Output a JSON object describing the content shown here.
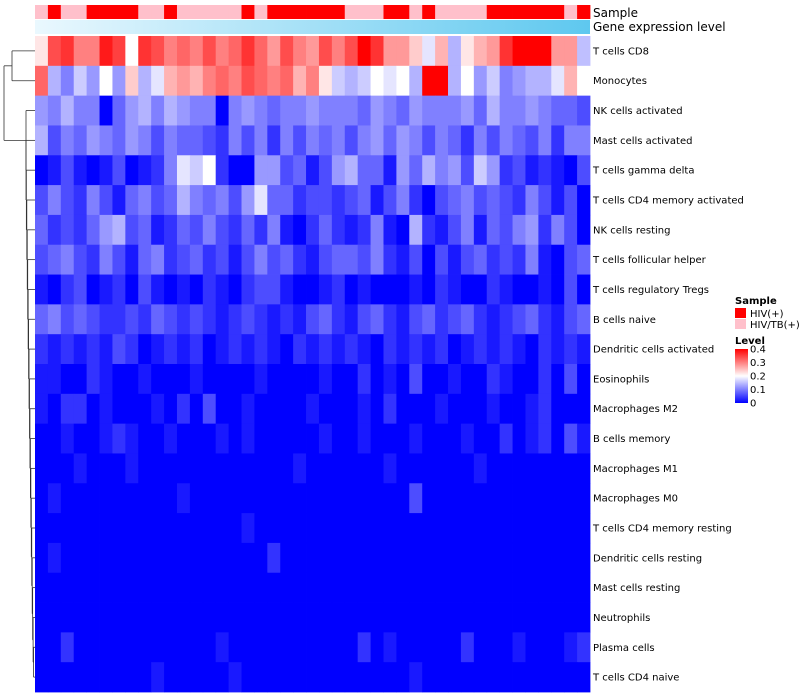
{
  "chart_data": {
    "type": "heatmap",
    "title": "",
    "annotations": {
      "sample_label": "Sample",
      "gene_label": "Gene expression level"
    },
    "rows": [
      "T cells CD8",
      "Monocytes",
      "NK cells activated",
      "Mast cells activated",
      "T cells gamma delta",
      "T cells CD4 memory activated",
      "NK cells resting",
      "T cells follicular helper",
      "T cells regulatory  Tregs",
      "B cells naive",
      "Dendritic cells activated",
      "Eosinophils",
      "Macrophages M2",
      "B cells memory",
      "Macrophages M1",
      "Macrophages M0",
      "T cells CD4 memory resting",
      "Dendritic cells resting",
      "Mast cells resting",
      "Neutrophils",
      "Plasma cells",
      "T cells CD4 naive"
    ],
    "samples": [
      "HIV/TB(+)",
      "HIV(+)",
      "HIV/TB(+)",
      "HIV/TB(+)",
      "HIV(+)",
      "HIV(+)",
      "HIV(+)",
      "HIV(+)",
      "HIV/TB(+)",
      "HIV/TB(+)",
      "HIV(+)",
      "HIV/TB(+)",
      "HIV/TB(+)",
      "HIV/TB(+)",
      "HIV/TB(+)",
      "HIV/TB(+)",
      "HIV(+)",
      "HIV/TB(+)",
      "HIV(+)",
      "HIV(+)",
      "HIV(+)",
      "HIV(+)",
      "HIV(+)",
      "HIV(+)",
      "HIV/TB(+)",
      "HIV/TB(+)",
      "HIV/TB(+)",
      "HIV(+)",
      "HIV(+)",
      "HIV/TB(+)",
      "HIV(+)",
      "HIV/TB(+)",
      "HIV/TB(+)",
      "HIV/TB(+)",
      "HIV/TB(+)",
      "HIV(+)",
      "HIV(+)",
      "HIV(+)",
      "HIV(+)",
      "HIV(+)",
      "HIV(+)",
      "HIV/TB(+)",
      "HIV(+)"
    ],
    "gene_expression_level": "low to high",
    "values": [
      [
        0.22,
        0.34,
        0.36,
        0.3,
        0.3,
        0.38,
        0.35,
        0.2,
        0.36,
        0.34,
        0.3,
        0.32,
        0.3,
        0.34,
        0.3,
        0.32,
        0.36,
        0.32,
        0.28,
        0.34,
        0.3,
        0.28,
        0.34,
        0.3,
        0.34,
        0.4,
        0.36,
        0.28,
        0.28,
        0.24,
        0.18,
        0.26,
        0.14,
        0.22,
        0.26,
        0.28,
        0.36,
        0.4,
        0.4,
        0.4,
        0.28,
        0.28,
        0.15
      ],
      [
        0.32,
        0.14,
        0.1,
        0.16,
        0.12,
        0.2,
        0.12,
        0.24,
        0.14,
        0.18,
        0.26,
        0.28,
        0.26,
        0.3,
        0.32,
        0.3,
        0.34,
        0.32,
        0.3,
        0.32,
        0.26,
        0.3,
        0.22,
        0.16,
        0.14,
        0.16,
        0.2,
        0.18,
        0.2,
        0.14,
        0.4,
        0.4,
        0.14,
        0.2,
        0.12,
        0.16,
        0.1,
        0.12,
        0.14,
        0.14,
        0.18,
        0.26,
        0.2
      ],
      [
        0.12,
        0.1,
        0.14,
        0.1,
        0.1,
        0.0,
        0.08,
        0.12,
        0.14,
        0.1,
        0.14,
        0.12,
        0.1,
        0.1,
        0.0,
        0.1,
        0.12,
        0.1,
        0.08,
        0.1,
        0.1,
        0.12,
        0.1,
        0.1,
        0.1,
        0.08,
        0.12,
        0.1,
        0.08,
        0.12,
        0.1,
        0.1,
        0.1,
        0.12,
        0.08,
        0.14,
        0.1,
        0.1,
        0.12,
        0.1,
        0.08,
        0.08,
        0.06
      ],
      [
        0.14,
        0.06,
        0.1,
        0.08,
        0.12,
        0.1,
        0.08,
        0.12,
        0.1,
        0.06,
        0.1,
        0.08,
        0.08,
        0.06,
        0.04,
        0.1,
        0.06,
        0.1,
        0.04,
        0.1,
        0.06,
        0.1,
        0.08,
        0.1,
        0.06,
        0.1,
        0.12,
        0.08,
        0.12,
        0.1,
        0.06,
        0.1,
        0.08,
        0.04,
        0.1,
        0.06,
        0.1,
        0.08,
        0.06,
        0.1,
        0.04,
        0.1,
        0.1
      ],
      [
        0.0,
        0.02,
        0.06,
        0.02,
        0.0,
        0.02,
        0.06,
        0.0,
        0.02,
        0.04,
        0.1,
        0.18,
        0.16,
        0.2,
        0.04,
        0.0,
        0.0,
        0.12,
        0.12,
        0.06,
        0.08,
        0.02,
        0.06,
        0.12,
        0.14,
        0.08,
        0.08,
        0.02,
        0.12,
        0.08,
        0.14,
        0.1,
        0.12,
        0.06,
        0.16,
        0.12,
        0.04,
        0.06,
        0.02,
        0.04,
        0.02,
        0.0,
        0.06
      ],
      [
        0.06,
        0.1,
        0.06,
        0.04,
        0.1,
        0.06,
        0.02,
        0.08,
        0.1,
        0.06,
        0.08,
        0.14,
        0.1,
        0.08,
        0.1,
        0.06,
        0.12,
        0.18,
        0.08,
        0.08,
        0.04,
        0.06,
        0.06,
        0.04,
        0.06,
        0.08,
        0.02,
        0.06,
        0.1,
        0.04,
        0.0,
        0.06,
        0.08,
        0.1,
        0.06,
        0.08,
        0.06,
        0.04,
        0.1,
        0.06,
        0.02,
        0.06,
        0.0
      ],
      [
        0.08,
        0.04,
        0.06,
        0.04,
        0.08,
        0.12,
        0.14,
        0.06,
        0.08,
        0.02,
        0.04,
        0.08,
        0.06,
        0.1,
        0.06,
        0.04,
        0.08,
        0.04,
        0.1,
        0.02,
        0.0,
        0.04,
        0.08,
        0.04,
        0.02,
        0.04,
        0.1,
        0.02,
        0.0,
        0.14,
        0.04,
        0.02,
        0.06,
        0.1,
        0.02,
        0.08,
        0.06,
        0.1,
        0.12,
        0.04,
        0.1,
        0.06,
        0.0
      ],
      [
        0.06,
        0.08,
        0.1,
        0.06,
        0.04,
        0.1,
        0.06,
        0.02,
        0.08,
        0.1,
        0.04,
        0.06,
        0.08,
        0.04,
        0.06,
        0.02,
        0.06,
        0.1,
        0.06,
        0.08,
        0.04,
        0.02,
        0.06,
        0.08,
        0.08,
        0.06,
        0.1,
        0.04,
        0.02,
        0.06,
        0.0,
        0.06,
        0.02,
        0.06,
        0.08,
        0.04,
        0.06,
        0.04,
        0.1,
        0.02,
        0.0,
        0.06,
        0.08
      ],
      [
        0.02,
        0.0,
        0.04,
        0.06,
        0.0,
        0.02,
        0.04,
        0.0,
        0.06,
        0.02,
        0.0,
        0.02,
        0.0,
        0.04,
        0.02,
        0.0,
        0.04,
        0.06,
        0.06,
        0.02,
        0.0,
        0.0,
        0.02,
        0.04,
        0.0,
        0.02,
        0.0,
        0.0,
        0.0,
        0.02,
        0.0,
        0.04,
        0.02,
        0.0,
        0.0,
        0.04,
        0.02,
        0.0,
        0.0,
        0.02,
        0.0,
        0.06,
        0.0
      ],
      [
        0.08,
        0.1,
        0.06,
        0.08,
        0.06,
        0.04,
        0.04,
        0.06,
        0.04,
        0.08,
        0.06,
        0.04,
        0.06,
        0.04,
        0.02,
        0.04,
        0.06,
        0.04,
        0.02,
        0.04,
        0.02,
        0.06,
        0.08,
        0.04,
        0.02,
        0.06,
        0.08,
        0.04,
        0.02,
        0.06,
        0.08,
        0.04,
        0.06,
        0.08,
        0.04,
        0.02,
        0.04,
        0.06,
        0.08,
        0.04,
        0.02,
        0.06,
        0.08
      ],
      [
        0.04,
        0.02,
        0.04,
        0.02,
        0.04,
        0.02,
        0.06,
        0.04,
        0.0,
        0.02,
        0.04,
        0.02,
        0.04,
        0.0,
        0.02,
        0.04,
        0.02,
        0.04,
        0.02,
        0.0,
        0.04,
        0.02,
        0.04,
        0.02,
        0.04,
        0.02,
        0.0,
        0.04,
        0.02,
        0.04,
        0.02,
        0.04,
        0.0,
        0.02,
        0.04,
        0.02,
        0.04,
        0.02,
        0.0,
        0.04,
        0.02,
        0.04,
        0.02
      ],
      [
        0.02,
        0.02,
        0.0,
        0.0,
        0.04,
        0.02,
        0.0,
        0.0,
        0.02,
        0.0,
        0.0,
        0.0,
        0.02,
        0.0,
        0.0,
        0.0,
        0.0,
        0.02,
        0.0,
        0.0,
        0.0,
        0.0,
        0.02,
        0.0,
        0.0,
        0.04,
        0.0,
        0.02,
        0.0,
        0.06,
        0.0,
        0.0,
        0.02,
        0.0,
        0.0,
        0.04,
        0.02,
        0.0,
        0.0,
        0.04,
        0.0,
        0.06,
        0.0
      ],
      [
        0.02,
        0.0,
        0.04,
        0.04,
        0.0,
        0.02,
        0.0,
        0.0,
        0.0,
        0.02,
        0.0,
        0.04,
        0.0,
        0.06,
        0.0,
        0.0,
        0.02,
        0.0,
        0.0,
        0.0,
        0.0,
        0.02,
        0.0,
        0.0,
        0.0,
        0.02,
        0.0,
        0.04,
        0.0,
        0.0,
        0.0,
        0.02,
        0.0,
        0.0,
        0.0,
        0.02,
        0.0,
        0.0,
        0.02,
        0.04,
        0.0,
        0.0,
        0.0
      ],
      [
        0.0,
        0.0,
        0.02,
        0.0,
        0.0,
        0.02,
        0.04,
        0.02,
        0.0,
        0.0,
        0.02,
        0.0,
        0.0,
        0.0,
        0.02,
        0.0,
        0.02,
        0.0,
        0.0,
        0.0,
        0.0,
        0.0,
        0.02,
        0.0,
        0.0,
        0.02,
        0.0,
        0.0,
        0.0,
        0.02,
        0.0,
        0.0,
        0.0,
        0.02,
        0.0,
        0.0,
        0.04,
        0.0,
        0.02,
        0.04,
        0.0,
        0.06,
        0.02
      ],
      [
        0.0,
        0.0,
        0.0,
        0.02,
        0.0,
        0.0,
        0.0,
        0.02,
        0.0,
        0.0,
        0.0,
        0.0,
        0.0,
        0.0,
        0.0,
        0.0,
        0.0,
        0.0,
        0.0,
        0.0,
        0.02,
        0.0,
        0.0,
        0.0,
        0.0,
        0.0,
        0.0,
        0.02,
        0.0,
        0.0,
        0.0,
        0.0,
        0.0,
        0.0,
        0.02,
        0.0,
        0.0,
        0.0,
        0.0,
        0.0,
        0.0,
        0.0,
        0.0
      ],
      [
        0.0,
        0.02,
        0.0,
        0.0,
        0.0,
        0.0,
        0.0,
        0.0,
        0.0,
        0.0,
        0.0,
        0.02,
        0.0,
        0.0,
        0.0,
        0.0,
        0.0,
        0.0,
        0.0,
        0.0,
        0.0,
        0.0,
        0.0,
        0.0,
        0.0,
        0.0,
        0.0,
        0.0,
        0.0,
        0.06,
        0.0,
        0.0,
        0.0,
        0.0,
        0.0,
        0.0,
        0.0,
        0.0,
        0.0,
        0.0,
        0.0,
        0.0,
        0.0
      ],
      [
        0.0,
        0.0,
        0.0,
        0.0,
        0.0,
        0.0,
        0.0,
        0.0,
        0.0,
        0.0,
        0.0,
        0.0,
        0.0,
        0.0,
        0.0,
        0.0,
        0.02,
        0.0,
        0.0,
        0.0,
        0.0,
        0.0,
        0.0,
        0.0,
        0.0,
        0.0,
        0.0,
        0.0,
        0.0,
        0.0,
        0.0,
        0.0,
        0.0,
        0.0,
        0.0,
        0.0,
        0.0,
        0.0,
        0.0,
        0.0,
        0.0,
        0.0,
        0.0
      ],
      [
        0.0,
        0.02,
        0.0,
        0.0,
        0.0,
        0.0,
        0.0,
        0.0,
        0.0,
        0.0,
        0.0,
        0.0,
        0.0,
        0.0,
        0.0,
        0.0,
        0.0,
        0.0,
        0.04,
        0.0,
        0.0,
        0.0,
        0.0,
        0.0,
        0.0,
        0.0,
        0.0,
        0.0,
        0.0,
        0.0,
        0.0,
        0.0,
        0.0,
        0.0,
        0.0,
        0.0,
        0.0,
        0.0,
        0.0,
        0.0,
        0.0,
        0.0,
        0.0
      ],
      [
        0.0,
        0.0,
        0.0,
        0.0,
        0.0,
        0.0,
        0.0,
        0.0,
        0.0,
        0.0,
        0.0,
        0.0,
        0.0,
        0.0,
        0.0,
        0.0,
        0.0,
        0.0,
        0.0,
        0.0,
        0.0,
        0.0,
        0.0,
        0.0,
        0.0,
        0.0,
        0.0,
        0.0,
        0.0,
        0.0,
        0.0,
        0.0,
        0.0,
        0.0,
        0.0,
        0.0,
        0.0,
        0.0,
        0.0,
        0.0,
        0.0,
        0.0,
        0.0
      ],
      [
        0.0,
        0.0,
        0.0,
        0.0,
        0.0,
        0.0,
        0.0,
        0.0,
        0.0,
        0.0,
        0.0,
        0.0,
        0.0,
        0.0,
        0.0,
        0.0,
        0.0,
        0.0,
        0.0,
        0.0,
        0.0,
        0.0,
        0.0,
        0.0,
        0.0,
        0.0,
        0.0,
        0.0,
        0.0,
        0.0,
        0.0,
        0.0,
        0.0,
        0.0,
        0.0,
        0.0,
        0.0,
        0.0,
        0.0,
        0.0,
        0.0,
        0.0,
        0.0
      ],
      [
        0.0,
        0.0,
        0.04,
        0.0,
        0.0,
        0.0,
        0.0,
        0.0,
        0.0,
        0.0,
        0.0,
        0.0,
        0.0,
        0.0,
        0.02,
        0.0,
        0.0,
        0.0,
        0.0,
        0.0,
        0.0,
        0.0,
        0.0,
        0.0,
        0.0,
        0.04,
        0.0,
        0.02,
        0.0,
        0.0,
        0.0,
        0.0,
        0.0,
        0.04,
        0.0,
        0.0,
        0.0,
        0.02,
        0.0,
        0.0,
        0.0,
        0.02,
        0.04
      ],
      [
        0.0,
        0.0,
        0.0,
        0.0,
        0.0,
        0.0,
        0.0,
        0.0,
        0.0,
        0.02,
        0.0,
        0.0,
        0.0,
        0.0,
        0.0,
        0.02,
        0.0,
        0.0,
        0.0,
        0.0,
        0.0,
        0.0,
        0.0,
        0.0,
        0.0,
        0.0,
        0.0,
        0.0,
        0.0,
        0.02,
        0.0,
        0.0,
        0.0,
        0.0,
        0.0,
        0.0,
        0.0,
        0.0,
        0.0,
        0.0,
        0.0,
        0.0,
        0.0
      ]
    ],
    "legend_sample": {
      "title": "Sample",
      "items": [
        {
          "label": "HIV(+)",
          "color": "#ff0000"
        },
        {
          "label": "HIV/TB(+)",
          "color": "#ffc0cb"
        }
      ]
    },
    "legend_level": {
      "title": "Level",
      "ticks": [
        "0.4",
        "0.3",
        "0.2",
        "0.1",
        "0"
      ],
      "range": [
        0,
        0.4
      ]
    },
    "colors": {
      "low": "#0000ff",
      "mid": "#ffffff",
      "high": "#ff0000",
      "gene_bar": "#5ec8ef"
    }
  }
}
